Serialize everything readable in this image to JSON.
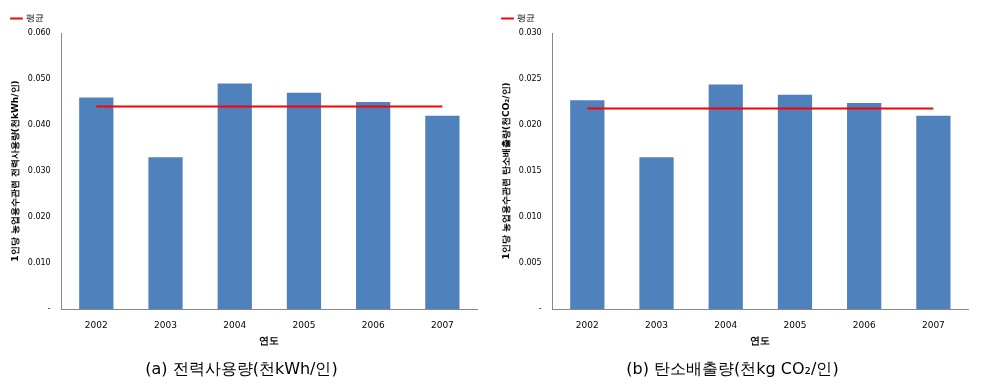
{
  "chart_data": [
    {
      "type": "bar",
      "title": "(a) 전력사용량(천kWh/인)",
      "x_label": "연도",
      "y_label": "1인당 농업용수관련 전력사용량(천kWh/인)",
      "categories": [
        "2002",
        "2003",
        "2004",
        "2005",
        "2006",
        "2007"
      ],
      "series": [
        {
          "type": "bar",
          "color": "#4f81bd",
          "values": [
            0.046,
            0.033,
            0.049,
            0.047,
            0.045,
            0.042
          ]
        },
        {
          "name": "평균",
          "type": "line",
          "color": "#ff0000",
          "values": [
            0.044,
            0.044,
            0.044,
            0.044,
            0.044,
            0.044
          ]
        }
      ],
      "ylim": [
        0,
        0.06
      ],
      "yticks": [
        {
          "value": 0,
          "label": "-"
        },
        {
          "value": 0.01,
          "label": "0.010"
        },
        {
          "value": 0.02,
          "label": "0.020"
        },
        {
          "value": 0.03,
          "label": "0.030"
        },
        {
          "value": 0.04,
          "label": "0.040"
        },
        {
          "value": 0.05,
          "label": "0.050"
        },
        {
          "value": 0.06,
          "label": "0.060"
        }
      ],
      "grid": false,
      "legend": "upper left"
    },
    {
      "type": "bar",
      "title": "(b) 탄소배출량(천kg CO₂/인)",
      "x_label": "연도",
      "y_label": "1인당 농업용수관련 탄소배출량(천CO₂/인)",
      "categories": [
        "2002",
        "2003",
        "2004",
        "2005",
        "2006",
        "2007"
      ],
      "series": [
        {
          "type": "bar",
          "color": "#4f81bd",
          "values": [
            0.0227,
            0.0165,
            0.0244,
            0.0233,
            0.0224,
            0.021
          ]
        },
        {
          "name": "평균",
          "type": "line",
          "color": "#ff0000",
          "values": [
            0.0218,
            0.0218,
            0.0218,
            0.0218,
            0.0218,
            0.0218
          ]
        }
      ],
      "ylim": [
        0,
        0.03
      ],
      "yticks": [
        {
          "value": 0,
          "label": "-"
        },
        {
          "value": 0.005,
          "label": "0.005"
        },
        {
          "value": 0.01,
          "label": "0.010"
        },
        {
          "value": 0.015,
          "label": "0.015"
        },
        {
          "value": 0.02,
          "label": "0.020"
        },
        {
          "value": 0.025,
          "label": "0.025"
        },
        {
          "value": 0.03,
          "label": "0.030"
        }
      ],
      "grid": false,
      "legend": "upper left"
    }
  ]
}
